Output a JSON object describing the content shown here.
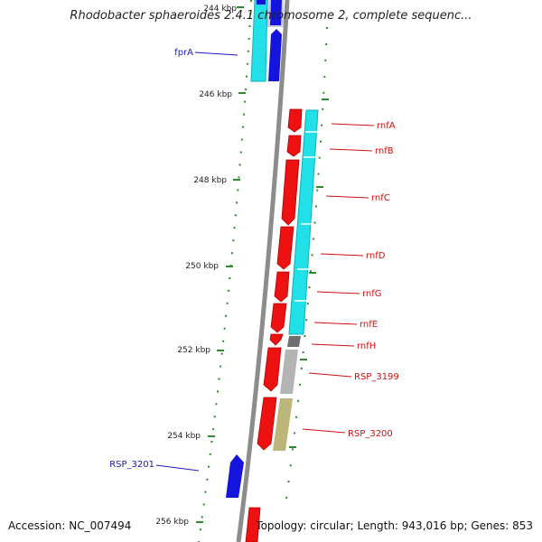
{
  "title": "Rhodobacter sphaeroides 2.4.1 chromosome 2, complete sequenc...",
  "footer": {
    "accession": "Accession: NC_007494",
    "summary": "Topology: circular; Length: 943,016 bp; Genes: 853"
  },
  "colors": {
    "backbone": "#8c8c8c",
    "tick": "#2e8b2e",
    "gene_forward": "#1414dc",
    "gene_reverse": "#ee1111",
    "cds_cyan": "#22e0e8",
    "cds_gray": "#6f6f6f",
    "cds_lightgray": "#b4b4b4",
    "cds_khaki": "#bdb67a",
    "label_forward": "#1a1ab8",
    "label_reverse": "#cc1111"
  },
  "ruler": {
    "unit": "kbp",
    "labels": [
      "244 kbp",
      "246 kbp",
      "248 kbp",
      "250 kbp",
      "252 kbp",
      "254 kbp",
      "256 kbp"
    ]
  },
  "genes": [
    {
      "name": "fprA",
      "strand": "+",
      "feature": "cyan"
    },
    {
      "name": "rnfA",
      "strand": "-",
      "feature": "cyan"
    },
    {
      "name": "rnfB",
      "strand": "-",
      "feature": "cyan"
    },
    {
      "name": "rnfC",
      "strand": "-",
      "feature": "cyan"
    },
    {
      "name": "rnfD",
      "strand": "-",
      "feature": "cyan"
    },
    {
      "name": "rnfG",
      "strand": "-",
      "feature": "cyan"
    },
    {
      "name": "rnfE",
      "strand": "-",
      "feature": "cyan"
    },
    {
      "name": "rnfH",
      "strand": "-",
      "feature": "gray"
    },
    {
      "name": "RSP_3199",
      "strand": "-",
      "feature": "lightgray"
    },
    {
      "name": "RSP_3200",
      "strand": "-",
      "feature": "khaki"
    },
    {
      "name": "RSP_3201",
      "strand": "+",
      "feature": "none"
    }
  ]
}
